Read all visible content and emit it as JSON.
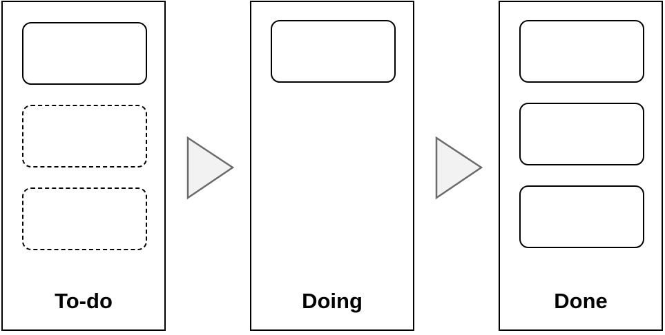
{
  "board": {
    "columns": [
      {
        "label": "To-do",
        "cards": [
          "solid",
          "dashed",
          "dashed"
        ]
      },
      {
        "label": "Doing",
        "cards": [
          "solid"
        ]
      },
      {
        "label": "Done",
        "cards": [
          "solid",
          "solid",
          "solid"
        ]
      }
    ],
    "arrow_color": "#6b6b6b",
    "arrow_fill": "#f2f2f2",
    "border_color": "#000000"
  }
}
